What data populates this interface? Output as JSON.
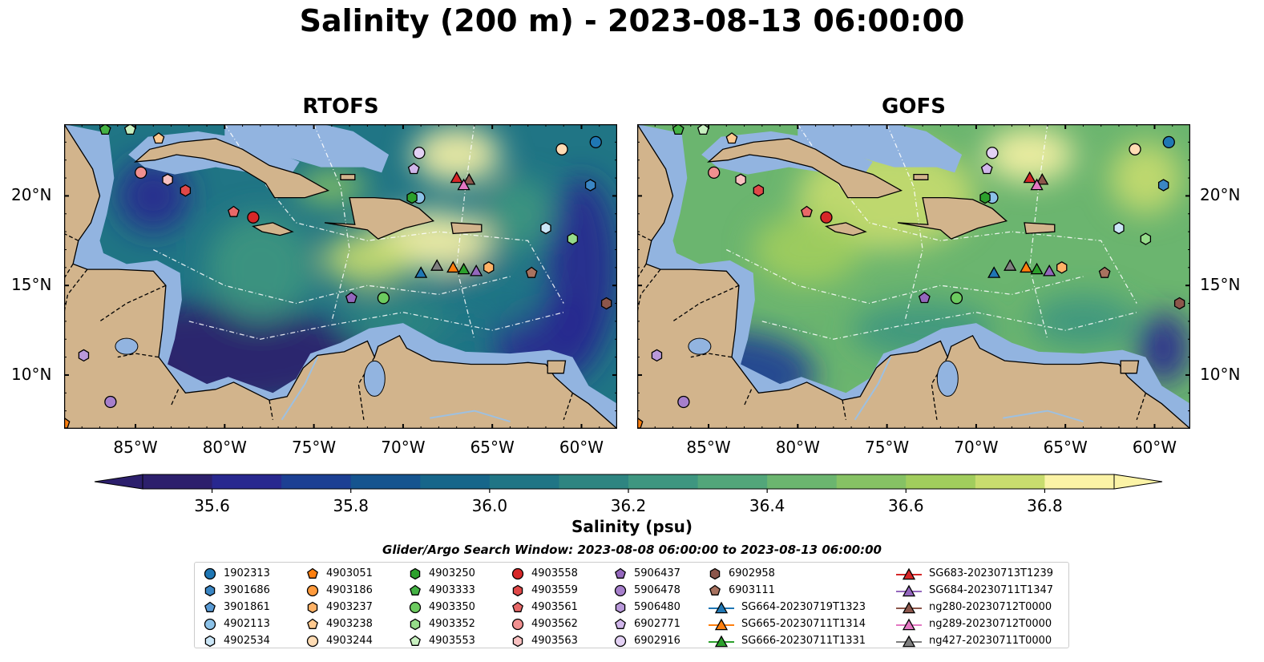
{
  "title": "Salinity (200 m) - 2023-08-13 06:00:00",
  "panels": [
    {
      "title": "RTOFS",
      "model": "rtofs"
    },
    {
      "title": "GOFS",
      "model": "gofs"
    }
  ],
  "map_extent": {
    "lon": [
      -89,
      -58
    ],
    "lat": [
      7,
      24
    ]
  },
  "x_ticks": [
    {
      "lon": -85,
      "label": "85°W"
    },
    {
      "lon": -80,
      "label": "80°W"
    },
    {
      "lon": -75,
      "label": "75°W"
    },
    {
      "lon": -70,
      "label": "70°W"
    },
    {
      "lon": -65,
      "label": "65°W"
    },
    {
      "lon": -60,
      "label": "60°W"
    }
  ],
  "y_ticks": [
    {
      "lat": 20,
      "label": "20°N"
    },
    {
      "lat": 15,
      "label": "15°N"
    },
    {
      "lat": 10,
      "label": "10°N"
    }
  ],
  "colorbar": {
    "min": 35.5,
    "max": 36.9,
    "ticks": [
      "35.6",
      "35.8",
      "36.0",
      "36.2",
      "36.4",
      "36.6",
      "36.8"
    ],
    "label": "Salinity (psu)",
    "colors": [
      "#2c1f6c",
      "#28288f",
      "#1c3f93",
      "#15548f",
      "#17668a",
      "#207585",
      "#2e8581",
      "#3e9680",
      "#52a67a",
      "#6bb56f",
      "#86c264",
      "#a1cd5d",
      "#c8dc6e",
      "#fbf3a6"
    ]
  },
  "colors": {
    "land": "#d2b48c",
    "shelf": "#92b4e0",
    "ocean_base": "#2a7e86"
  },
  "search_window": "Glider/Argo Search Window: 2023-08-08 06:00:00 to 2023-08-13 06:00:00",
  "legend": [
    [
      {
        "label": "1902313",
        "marker": "circle",
        "color": "#1f77b4"
      },
      {
        "label": "3901686",
        "marker": "hexagon",
        "color": "#3a86c4"
      },
      {
        "label": "3901861",
        "marker": "pentagon",
        "color": "#5a9bd5"
      },
      {
        "label": "4902113",
        "marker": "circle",
        "color": "#8cc2e8"
      },
      {
        "label": "4902534",
        "marker": "hexagon",
        "color": "#cbe6f7"
      }
    ],
    [
      {
        "label": "4903051",
        "marker": "pentagon",
        "color": "#ff7f0e"
      },
      {
        "label": "4903186",
        "marker": "circle",
        "color": "#ff9a3c"
      },
      {
        "label": "4903237",
        "marker": "hexagon",
        "color": "#ffb266"
      },
      {
        "label": "4903238",
        "marker": "pentagon",
        "color": "#ffc98f"
      },
      {
        "label": "4903244",
        "marker": "circle",
        "color": "#ffdcb4"
      }
    ],
    [
      {
        "label": "4903250",
        "marker": "hexagon",
        "color": "#2ca02c"
      },
      {
        "label": "4903333",
        "marker": "pentagon",
        "color": "#44b244"
      },
      {
        "label": "4903350",
        "marker": "circle",
        "color": "#6ccb5f"
      },
      {
        "label": "4903352",
        "marker": "hexagon",
        "color": "#96dc8a"
      },
      {
        "label": "4903553",
        "marker": "pentagon",
        "color": "#c8f0c0"
      }
    ],
    [
      {
        "label": "4903558",
        "marker": "circle",
        "color": "#d62728"
      },
      {
        "label": "4903559",
        "marker": "hexagon",
        "color": "#e04848"
      },
      {
        "label": "4903561",
        "marker": "pentagon",
        "color": "#e86868"
      },
      {
        "label": "4903562",
        "marker": "circle",
        "color": "#f09090"
      },
      {
        "label": "4903563",
        "marker": "hexagon",
        "color": "#f8c0c0"
      }
    ],
    [
      {
        "label": "5906437",
        "marker": "pentagon",
        "color": "#9467bd"
      },
      {
        "label": "5906478",
        "marker": "circle",
        "color": "#a67fcb"
      },
      {
        "label": "5906480",
        "marker": "hexagon",
        "color": "#b999da"
      },
      {
        "label": "6902771",
        "marker": "pentagon",
        "color": "#d0b6ea"
      },
      {
        "label": "6902916",
        "marker": "circle",
        "color": "#e3d1f4"
      }
    ],
    [
      {
        "label": "6902958",
        "marker": "hexagon",
        "color": "#8c564b"
      },
      {
        "label": "6903111",
        "marker": "pentagon",
        "color": "#a8725f"
      },
      {
        "label": "SG664-20230719T1323",
        "marker": "triangle-line",
        "color": "#1f77b4"
      },
      {
        "label": "SG665-20230711T1314",
        "marker": "triangle-line",
        "color": "#ff7f0e"
      },
      {
        "label": "SG666-20230711T1331",
        "marker": "triangle-line",
        "color": "#2ca02c"
      }
    ],
    [
      {
        "label": "SG683-20230713T1239",
        "marker": "triangle-line",
        "color": "#d62728"
      },
      {
        "label": "SG684-20230711T1347",
        "marker": "triangle-line",
        "color": "#9467bd"
      },
      {
        "label": "ng280-20230712T0000",
        "marker": "triangle-line",
        "color": "#8c564b"
      },
      {
        "label": "ng289-20230712T0000",
        "marker": "triangle-line",
        "color": "#e377c2"
      },
      {
        "label": "ng427-20230711T0000",
        "marker": "triangle-line",
        "color": "#7f7f7f"
      }
    ]
  ],
  "observations": [
    {
      "id": "1902313",
      "lon": -59.2,
      "lat": 23.0
    },
    {
      "id": "3901686",
      "lon": -59.5,
      "lat": 20.6
    },
    {
      "id": "4902113",
      "lon": -69.1,
      "lat": 19.9
    },
    {
      "id": "4902534",
      "lon": -62.0,
      "lat": 18.2
    },
    {
      "id": "4903051",
      "lon": -89.0,
      "lat": 7.3
    },
    {
      "id": "4903244",
      "lon": -61.1,
      "lat": 22.6
    },
    {
      "id": "4903250",
      "lon": -69.5,
      "lat": 19.9
    },
    {
      "id": "4903333",
      "lon": -86.7,
      "lat": 23.7
    },
    {
      "id": "4903350",
      "lon": -71.1,
      "lat": 14.3
    },
    {
      "id": "4903352",
      "lon": -60.5,
      "lat": 17.6
    },
    {
      "id": "4903553",
      "lon": -85.3,
      "lat": 23.7
    },
    {
      "id": "4903558",
      "lon": -78.4,
      "lat": 18.8
    },
    {
      "id": "4903559",
      "lon": -82.2,
      "lat": 20.3
    },
    {
      "id": "4903561",
      "lon": -79.5,
      "lat": 19.1
    },
    {
      "id": "4903562",
      "lon": -84.7,
      "lat": 21.3
    },
    {
      "id": "4903563",
      "lon": -83.2,
      "lat": 20.9
    },
    {
      "id": "5906437",
      "lon": -72.9,
      "lat": 14.3
    },
    {
      "id": "5906478",
      "lon": -86.4,
      "lat": 8.5
    },
    {
      "id": "5906480",
      "lon": -87.9,
      "lat": 11.1
    },
    {
      "id": "6902771",
      "lon": -69.4,
      "lat": 21.5
    },
    {
      "id": "6902916",
      "lon": -69.1,
      "lat": 22.4
    },
    {
      "id": "6902958",
      "lon": -58.6,
      "lat": 14.0
    },
    {
      "id": "6903111",
      "lon": -62.8,
      "lat": 15.7
    },
    {
      "id": "4903238",
      "lon": -83.7,
      "lat": 23.2
    },
    {
      "id": "4903237",
      "lon": -65.2,
      "lat": 16.0
    },
    {
      "id": "SG664-20230719T1323",
      "lon": -69.0,
      "lat": 15.7
    },
    {
      "id": "SG665-20230711T1314",
      "lon": -67.2,
      "lat": 16.0
    },
    {
      "id": "SG666-20230711T1331",
      "lon": -66.6,
      "lat": 15.9
    },
    {
      "id": "SG683-20230713T1239",
      "lon": -67.0,
      "lat": 21.0
    },
    {
      "id": "SG684-20230711T1347",
      "lon": -65.9,
      "lat": 15.8
    },
    {
      "id": "ng280-20230712T0000",
      "lon": -66.3,
      "lat": 20.9
    },
    {
      "id": "ng289-20230712T0000",
      "lon": -66.6,
      "lat": 20.6
    },
    {
      "id": "ng427-20230711T0000",
      "lon": -68.1,
      "lat": 16.1
    }
  ]
}
